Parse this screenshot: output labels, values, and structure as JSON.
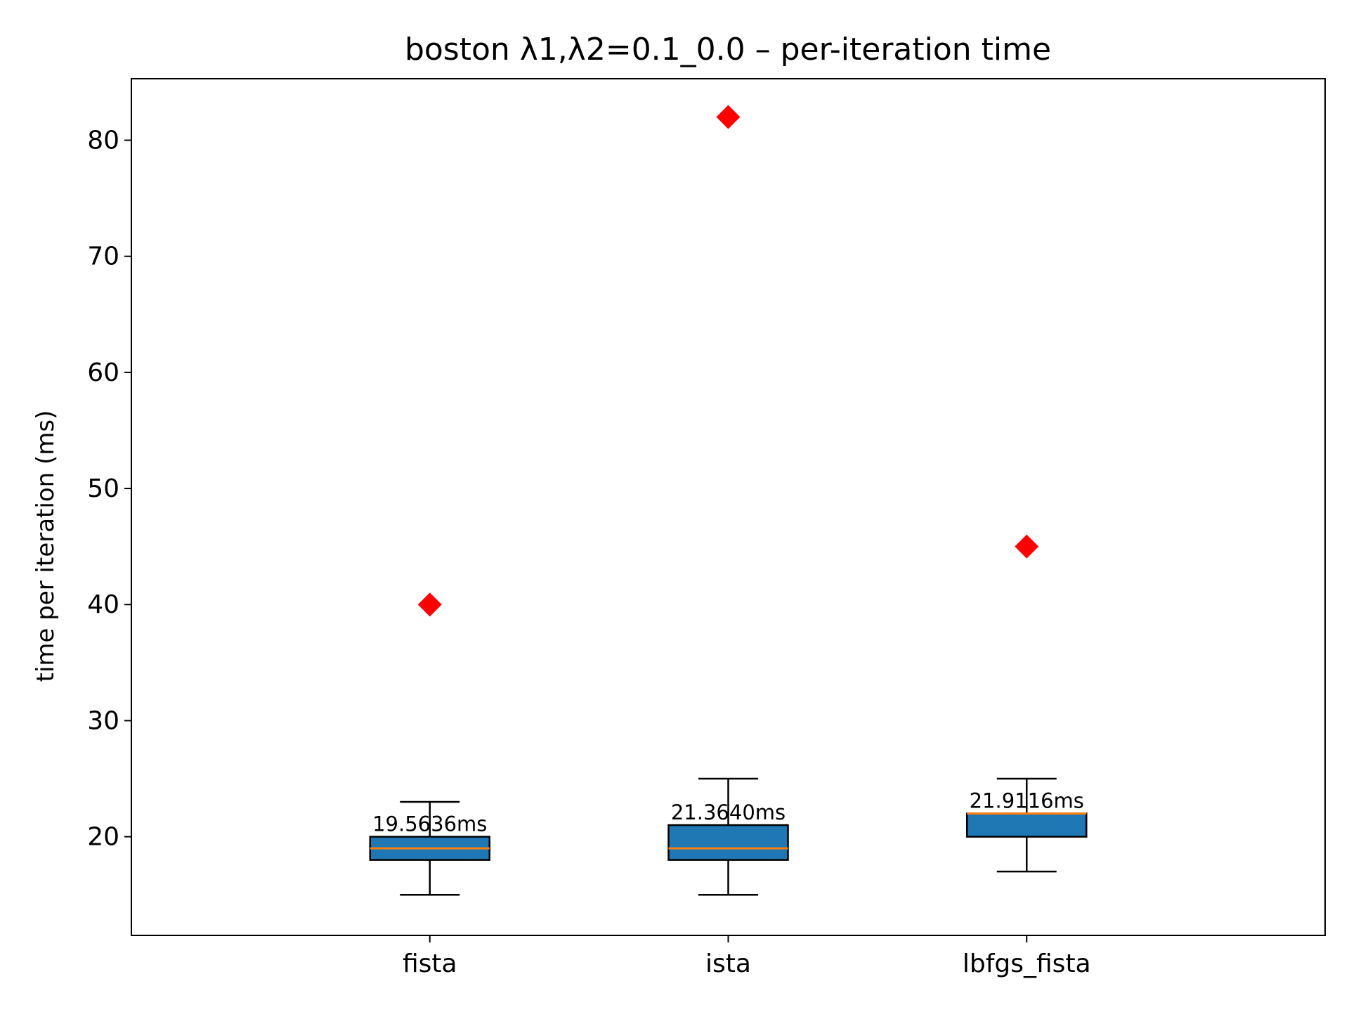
{
  "chart_data": {
    "type": "box",
    "title": "boston   λ1,λ2=0.1_0.0  –  per-iteration time",
    "xlabel": "",
    "ylabel": "time per iteration (ms)",
    "ylim": [
      11.5,
      85.3
    ],
    "yticks": [
      20,
      30,
      40,
      50,
      60,
      70,
      80
    ],
    "grid": false,
    "categories": [
      "fista",
      "ista",
      "lbfgs_fista"
    ],
    "boxes": [
      {
        "name": "fista",
        "whisker_low": 15,
        "q1": 18,
        "median": 19,
        "q3": 20,
        "whisker_high": 23,
        "outliers": [
          40
        ],
        "mean_label": "19.5636ms"
      },
      {
        "name": "ista",
        "whisker_low": 15,
        "q1": 18,
        "median": 19,
        "q3": 21,
        "whisker_high": 25,
        "outliers": [
          82
        ],
        "mean_label": "21.3640ms"
      },
      {
        "name": "lbfgs_fista",
        "whisker_low": 17,
        "q1": 20,
        "median": 22,
        "q3": 22,
        "whisker_high": 25,
        "outliers": [
          45
        ],
        "mean_label": "21.9116ms"
      }
    ],
    "colors": {
      "box_fill": "#1f77b4",
      "median": "#ff7f0e",
      "outlier": "#ff0000"
    }
  }
}
